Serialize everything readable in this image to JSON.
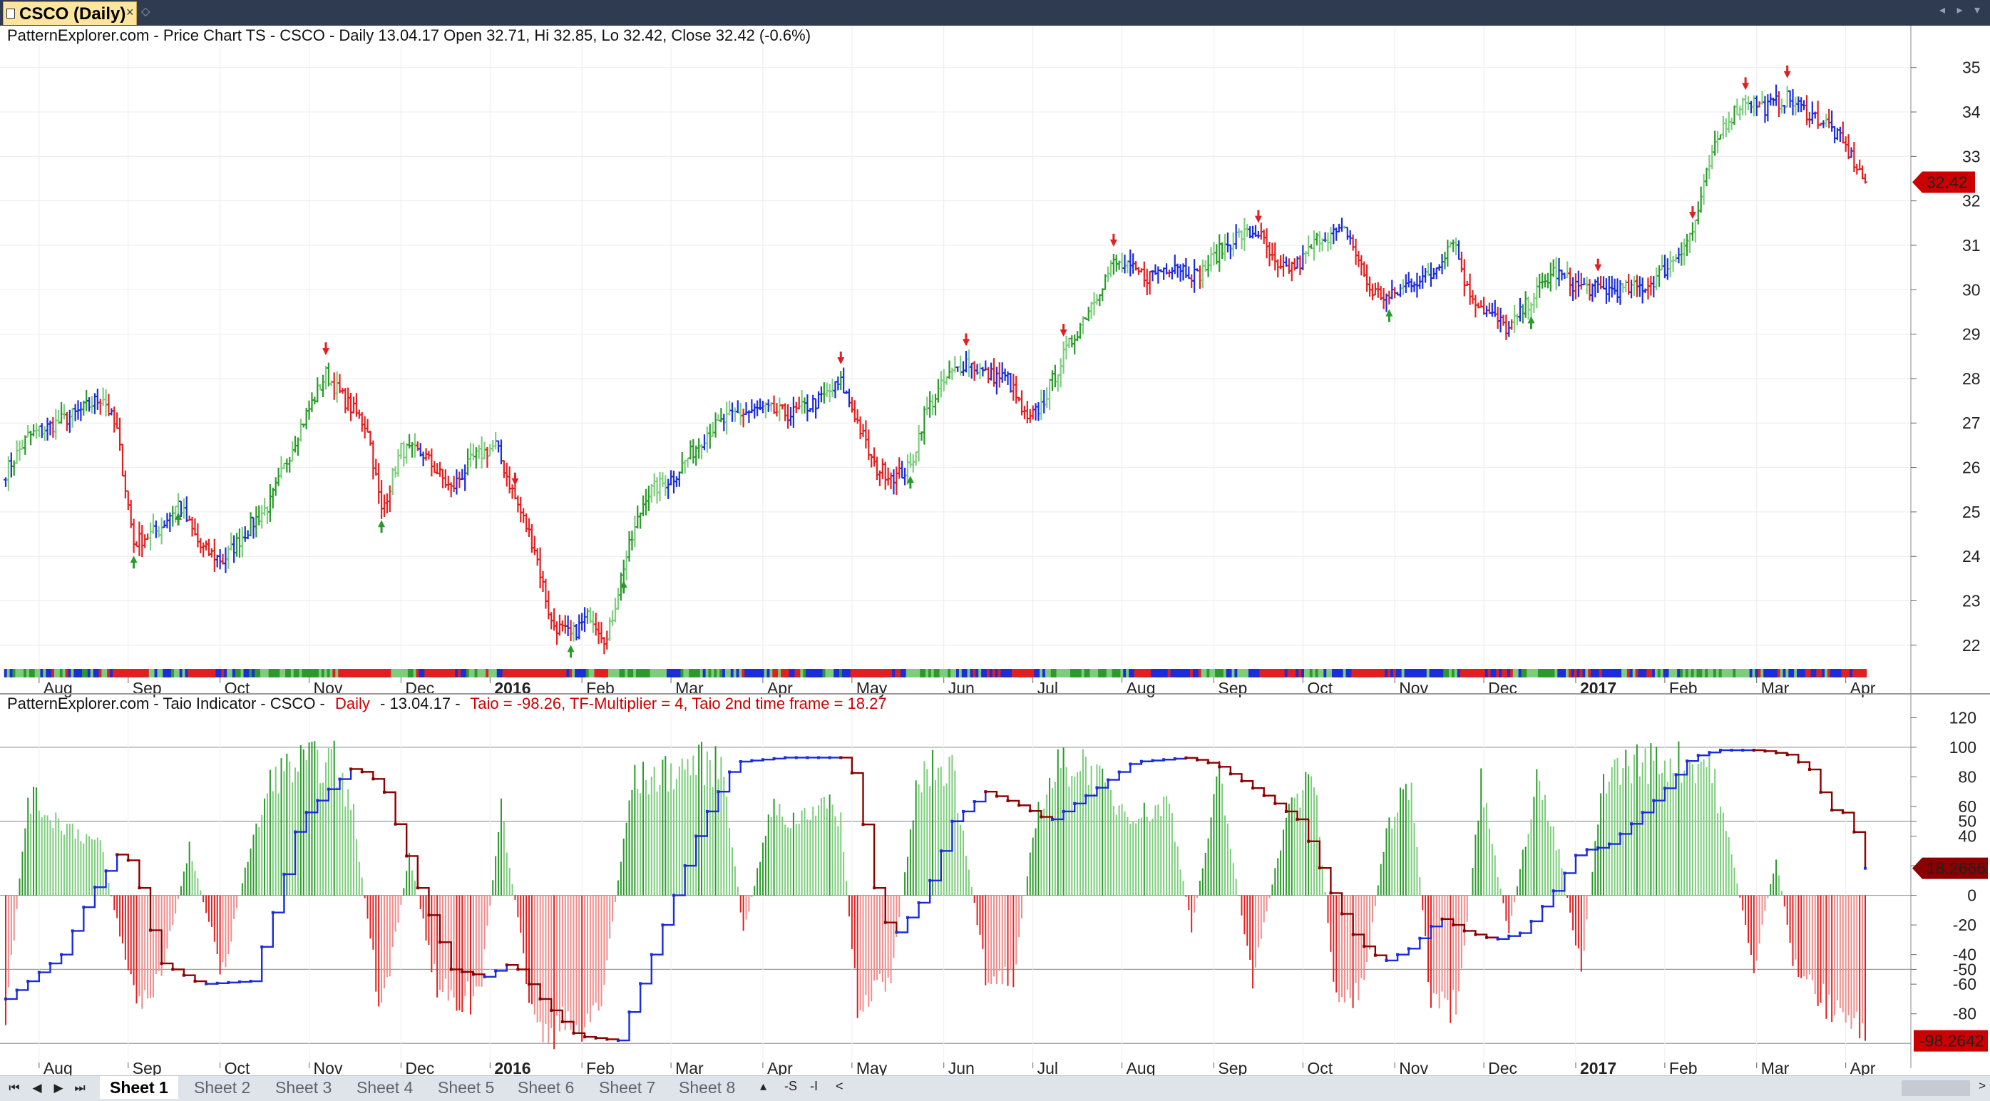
{
  "window": {
    "tab_title": "CSCO (Daily)",
    "close_glyph": "×",
    "pin_glyph": "◇",
    "controls_glyph": "◂ ▸ ▾"
  },
  "chart_data": [
    {
      "type": "candlestick",
      "title": "PatternExplorer.com - Price Chart TS - CSCO - Daily 13.04.17 Open 32.71, Hi 32.85, Lo 32.42, Close 32.42 (-0.6%)",
      "ylim": [
        21.5,
        35.3
      ],
      "yticks": [
        22,
        23,
        24,
        25,
        26,
        27,
        28,
        29,
        30,
        31,
        32,
        33,
        34,
        35
      ],
      "last_value_label": "32.42",
      "last_value": 32.42,
      "month_labels": [
        "Aug",
        "Sep",
        "Oct",
        "Nov",
        "Dec",
        "2016",
        "Feb",
        "Mar",
        "Apr",
        "May",
        "Jun",
        "Jul",
        "Aug",
        "Sep",
        "Oct",
        "Nov",
        "Dec",
        "2017",
        "Feb",
        "Mar",
        "Apr"
      ],
      "year_labels": [
        "2016",
        "2017"
      ],
      "series_keypoints": [
        {
          "x": 0,
          "close": 25.9
        },
        {
          "x": 8,
          "close": 26.7
        },
        {
          "x": 25,
          "close": 27.2
        },
        {
          "x": 35,
          "close": 27.6
        },
        {
          "x": 40,
          "close": 26.8
        },
        {
          "x": 46,
          "close": 24.3
        },
        {
          "x": 55,
          "close": 24.6
        },
        {
          "x": 62,
          "close": 25.2
        },
        {
          "x": 70,
          "close": 24.2
        },
        {
          "x": 78,
          "close": 23.9
        },
        {
          "x": 88,
          "close": 24.7
        },
        {
          "x": 95,
          "close": 25.2
        },
        {
          "x": 105,
          "close": 26.8
        },
        {
          "x": 115,
          "close": 28.1
        },
        {
          "x": 122,
          "close": 27.5
        },
        {
          "x": 130,
          "close": 26.9
        },
        {
          "x": 135,
          "close": 25.0
        },
        {
          "x": 142,
          "close": 26.4
        },
        {
          "x": 150,
          "close": 26.3
        },
        {
          "x": 160,
          "close": 25.5
        },
        {
          "x": 168,
          "close": 26.2
        },
        {
          "x": 176,
          "close": 26.5
        },
        {
          "x": 183,
          "close": 25.3
        },
        {
          "x": 190,
          "close": 24.2
        },
        {
          "x": 196,
          "close": 22.5
        },
        {
          "x": 203,
          "close": 22.2
        },
        {
          "x": 210,
          "close": 22.7
        },
        {
          "x": 216,
          "close": 22.1
        },
        {
          "x": 222,
          "close": 23.8
        },
        {
          "x": 230,
          "close": 25.4
        },
        {
          "x": 240,
          "close": 25.8
        },
        {
          "x": 252,
          "close": 26.8
        },
        {
          "x": 262,
          "close": 27.2
        },
        {
          "x": 272,
          "close": 27.3
        },
        {
          "x": 282,
          "close": 27.2
        },
        {
          "x": 292,
          "close": 27.5
        },
        {
          "x": 300,
          "close": 27.9
        },
        {
          "x": 305,
          "close": 27.2
        },
        {
          "x": 312,
          "close": 26.0
        },
        {
          "x": 320,
          "close": 25.8
        },
        {
          "x": 325,
          "close": 26.0
        },
        {
          "x": 330,
          "close": 27.2
        },
        {
          "x": 338,
          "close": 28.0
        },
        {
          "x": 345,
          "close": 28.4
        },
        {
          "x": 352,
          "close": 28.1
        },
        {
          "x": 360,
          "close": 28.0
        },
        {
          "x": 367,
          "close": 27.0
        },
        {
          "x": 372,
          "close": 27.4
        },
        {
          "x": 380,
          "close": 28.5
        },
        {
          "x": 390,
          "close": 29.7
        },
        {
          "x": 398,
          "close": 30.6
        },
        {
          "x": 410,
          "close": 30.3
        },
        {
          "x": 420,
          "close": 30.6
        },
        {
          "x": 428,
          "close": 30.3
        },
        {
          "x": 435,
          "close": 30.8
        },
        {
          "x": 442,
          "close": 31.2
        },
        {
          "x": 450,
          "close": 31.3
        },
        {
          "x": 457,
          "close": 30.4
        },
        {
          "x": 465,
          "close": 30.6
        },
        {
          "x": 472,
          "close": 31.2
        },
        {
          "x": 482,
          "close": 31.3
        },
        {
          "x": 490,
          "close": 30.0
        },
        {
          "x": 497,
          "close": 29.8
        },
        {
          "x": 505,
          "close": 30.2
        },
        {
          "x": 512,
          "close": 30.3
        },
        {
          "x": 520,
          "close": 31.2
        },
        {
          "x": 525,
          "close": 30.0
        },
        {
          "x": 532,
          "close": 29.5
        },
        {
          "x": 540,
          "close": 29.1
        },
        {
          "x": 548,
          "close": 29.8
        },
        {
          "x": 556,
          "close": 30.4
        },
        {
          "x": 564,
          "close": 30.1
        },
        {
          "x": 572,
          "close": 30.0
        },
        {
          "x": 582,
          "close": 30.0
        },
        {
          "x": 590,
          "close": 30.1
        },
        {
          "x": 598,
          "close": 30.6
        },
        {
          "x": 606,
          "close": 31.3
        },
        {
          "x": 612,
          "close": 32.8
        },
        {
          "x": 617,
          "close": 33.7
        },
        {
          "x": 625,
          "close": 34.3
        },
        {
          "x": 632,
          "close": 34.1
        },
        {
          "x": 640,
          "close": 34.3
        },
        {
          "x": 647,
          "close": 34.0
        },
        {
          "x": 655,
          "close": 33.7
        },
        {
          "x": 662,
          "close": 33.1
        },
        {
          "x": 668,
          "close": 32.42
        }
      ]
    },
    {
      "type": "bar_line",
      "title_prefix": "PatternExplorer.com - Taio Indicator - CSCO -",
      "title_daily": "Daily",
      "title_date": "- 13.04.17 -",
      "title_values": "Taio = -98.26, TF-Multiplier = 4, Taio 2nd time frame = 18.27",
      "ylim": [
        -110,
        125
      ],
      "yticks": [
        120,
        100,
        80,
        60,
        50,
        40,
        20,
        0,
        -20,
        -40,
        -50,
        -60,
        -80
      ],
      "hlines": [
        100,
        50,
        0,
        -50,
        -100
      ],
      "taio_value_label": "-98.2642",
      "taio_value": -98.2642,
      "tf2_value_label": "18.2666",
      "tf2_value": 18.2666,
      "month_labels": [
        "Aug",
        "Sep",
        "Oct",
        "Nov",
        "Dec",
        "2016",
        "Feb",
        "Mar",
        "Apr",
        "May",
        "Jun",
        "Jul",
        "Aug",
        "Sep",
        "Oct",
        "Nov",
        "Dec",
        "2017",
        "Feb",
        "Mar",
        "Apr"
      ],
      "tf2_keypoints": [
        {
          "x": 0,
          "v": -70
        },
        {
          "x": 20,
          "v": -40
        },
        {
          "x": 30,
          "v": 0
        },
        {
          "x": 42,
          "v": 33
        },
        {
          "x": 48,
          "v": 5
        },
        {
          "x": 55,
          "v": -45
        },
        {
          "x": 70,
          "v": -60
        },
        {
          "x": 88,
          "v": -58
        },
        {
          "x": 98,
          "v": 0
        },
        {
          "x": 105,
          "v": 50
        },
        {
          "x": 115,
          "v": 70
        },
        {
          "x": 125,
          "v": 87
        },
        {
          "x": 135,
          "v": 75
        },
        {
          "x": 148,
          "v": 5
        },
        {
          "x": 160,
          "v": -50
        },
        {
          "x": 172,
          "v": -55
        },
        {
          "x": 182,
          "v": -45
        },
        {
          "x": 192,
          "v": -70
        },
        {
          "x": 205,
          "v": -95
        },
        {
          "x": 220,
          "v": -98
        },
        {
          "x": 230,
          "v": -50
        },
        {
          "x": 240,
          "v": 0
        },
        {
          "x": 250,
          "v": 50
        },
        {
          "x": 262,
          "v": 90
        },
        {
          "x": 280,
          "v": 93
        },
        {
          "x": 300,
          "v": 93
        },
        {
          "x": 305,
          "v": 80
        },
        {
          "x": 312,
          "v": 5
        },
        {
          "x": 318,
          "v": -30
        },
        {
          "x": 330,
          "v": 0
        },
        {
          "x": 340,
          "v": 50
        },
        {
          "x": 352,
          "v": 70
        },
        {
          "x": 365,
          "v": 60
        },
        {
          "x": 375,
          "v": 50
        },
        {
          "x": 390,
          "v": 70
        },
        {
          "x": 405,
          "v": 90
        },
        {
          "x": 425,
          "v": 93
        },
        {
          "x": 435,
          "v": 88
        },
        {
          "x": 450,
          "v": 70
        },
        {
          "x": 465,
          "v": 50
        },
        {
          "x": 475,
          "v": 5
        },
        {
          "x": 485,
          "v": -30
        },
        {
          "x": 495,
          "v": -45
        },
        {
          "x": 505,
          "v": -35
        },
        {
          "x": 515,
          "v": -15
        },
        {
          "x": 525,
          "v": -25
        },
        {
          "x": 535,
          "v": -30
        },
        {
          "x": 545,
          "v": -25
        },
        {
          "x": 555,
          "v": 0
        },
        {
          "x": 565,
          "v": 30
        },
        {
          "x": 575,
          "v": 33
        },
        {
          "x": 585,
          "v": 50
        },
        {
          "x": 595,
          "v": 70
        },
        {
          "x": 605,
          "v": 93
        },
        {
          "x": 615,
          "v": 98
        },
        {
          "x": 630,
          "v": 98
        },
        {
          "x": 640,
          "v": 95
        },
        {
          "x": 648,
          "v": 85
        },
        {
          "x": 655,
          "v": 58
        },
        {
          "x": 662,
          "v": 55
        },
        {
          "x": 668,
          "v": 18.27
        }
      ],
      "histogram_keypoints": [
        {
          "x": 0,
          "v": -95
        },
        {
          "x": 8,
          "v": 75
        },
        {
          "x": 16,
          "v": 60
        },
        {
          "x": 24,
          "v": 50
        },
        {
          "x": 34,
          "v": 38
        },
        {
          "x": 40,
          "v": -20
        },
        {
          "x": 48,
          "v": -85
        },
        {
          "x": 56,
          "v": -60
        },
        {
          "x": 66,
          "v": 35
        },
        {
          "x": 78,
          "v": -60
        },
        {
          "x": 86,
          "v": 20
        },
        {
          "x": 96,
          "v": 90
        },
        {
          "x": 108,
          "v": 100
        },
        {
          "x": 118,
          "v": 100
        },
        {
          "x": 125,
          "v": 60
        },
        {
          "x": 135,
          "v": -95
        },
        {
          "x": 145,
          "v": 30
        },
        {
          "x": 155,
          "v": -70
        },
        {
          "x": 170,
          "v": -80
        },
        {
          "x": 178,
          "v": 65
        },
        {
          "x": 190,
          "v": -100
        },
        {
          "x": 205,
          "v": -100
        },
        {
          "x": 214,
          "v": -80
        },
        {
          "x": 225,
          "v": 85
        },
        {
          "x": 236,
          "v": 90
        },
        {
          "x": 248,
          "v": 100
        },
        {
          "x": 258,
          "v": 95
        },
        {
          "x": 265,
          "v": -30
        },
        {
          "x": 275,
          "v": 65
        },
        {
          "x": 282,
          "v": 55
        },
        {
          "x": 292,
          "v": 70
        },
        {
          "x": 300,
          "v": 60
        },
        {
          "x": 306,
          "v": -90
        },
        {
          "x": 318,
          "v": -60
        },
        {
          "x": 328,
          "v": 90
        },
        {
          "x": 340,
          "v": 100
        },
        {
          "x": 352,
          "v": -60
        },
        {
          "x": 362,
          "v": -60
        },
        {
          "x": 370,
          "v": 60
        },
        {
          "x": 378,
          "v": 95
        },
        {
          "x": 388,
          "v": 100
        },
        {
          "x": 398,
          "v": 70
        },
        {
          "x": 408,
          "v": 60
        },
        {
          "x": 418,
          "v": 70
        },
        {
          "x": 426,
          "v": -25
        },
        {
          "x": 436,
          "v": 90
        },
        {
          "x": 448,
          "v": -65
        },
        {
          "x": 460,
          "v": 60
        },
        {
          "x": 470,
          "v": 90
        },
        {
          "x": 478,
          "v": -85
        },
        {
          "x": 488,
          "v": -65
        },
        {
          "x": 496,
          "v": 50
        },
        {
          "x": 505,
          "v": 85
        },
        {
          "x": 512,
          "v": -85
        },
        {
          "x": 522,
          "v": -85
        },
        {
          "x": 530,
          "v": 85
        },
        {
          "x": 540,
          "v": -30
        },
        {
          "x": 550,
          "v": 90
        },
        {
          "x": 558,
          "v": 30
        },
        {
          "x": 566,
          "v": -55
        },
        {
          "x": 574,
          "v": 90
        },
        {
          "x": 585,
          "v": 100
        },
        {
          "x": 600,
          "v": 100
        },
        {
          "x": 612,
          "v": 100
        },
        {
          "x": 620,
          "v": 30
        },
        {
          "x": 628,
          "v": -55
        },
        {
          "x": 636,
          "v": 30
        },
        {
          "x": 642,
          "v": -50
        },
        {
          "x": 650,
          "v": -70
        },
        {
          "x": 658,
          "v": -90
        },
        {
          "x": 668,
          "v": -98.26
        }
      ]
    }
  ],
  "sheets": {
    "active": "Sheet 1",
    "tabs": [
      "Sheet 1",
      "Sheet 2",
      "Sheet 3",
      "Sheet 4",
      "Sheet 5",
      "Sheet 6",
      "Sheet 7",
      "Sheet 8"
    ],
    "tools": [
      "▴",
      "-S",
      "-I",
      "<"
    ]
  },
  "colors": {
    "up_dark": "#2a9a2a",
    "up_light": "#7ccd7c",
    "down": "#e02020",
    "neutral": "#1a2cdc",
    "line_up": "#1a2cdc",
    "line_down": "#8b0000",
    "hist_up_dark": "#2a9a2a",
    "hist_up_light": "#7ccd7c",
    "hist_down_dark": "#e02020",
    "hist_down_light": "#f08c8c",
    "value_box": "#cc0000",
    "tf2_box": "#8b0000"
  }
}
